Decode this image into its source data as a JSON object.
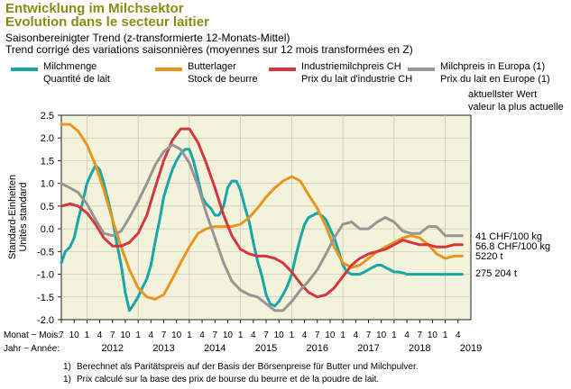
{
  "title": {
    "line1": "Entwicklung im Milchsektor",
    "line2": "Evolution dans le secteur laitier"
  },
  "subtitle": {
    "line1": "Saisonbereinigter Trend (z-transformierte 12-Monats-Mittel)",
    "line2": "Trend corrigé des variations saisonnières (moyennes sur 12 mois transformées en Z)"
  },
  "legend": [
    {
      "de": "Milchmenge",
      "fr": "Quantité de lait",
      "color": "#1aa6a6"
    },
    {
      "de": "Butterlager",
      "fr": "Stock de beurre",
      "color": "#e8961e"
    },
    {
      "de": "Industriemilchpreis CH",
      "fr": "Prix du lait d'industrie CH",
      "color": "#d6363c"
    },
    {
      "de": "Milchpreis in Europa (1)",
      "fr": "Prix du lait en Europe (1)",
      "color": "#9a9595"
    }
  ],
  "latest_header": {
    "de": "aktuellster Wert",
    "fr": "valeur la plus actuelle"
  },
  "latest_values": [
    "41 CHF/100 kg",
    "56.8 CHF/100 kg",
    "5220 t",
    "275 204 t"
  ],
  "axis": {
    "ylabel_de": "Standard-Einheiten",
    "ylabel_fr": "Unités standard",
    "month_label": "Monat ~ Mois:",
    "year_label": "Jahr ~ Année:"
  },
  "footnotes": [
    "Berechnet als Paritätspreis auf der Basis der Börsenpreise für Butter und Milchpulver.",
    "Prix calculé sur la base des prix de bourse du beurre et de la poudre de lait."
  ],
  "footnote_marker": "1)",
  "colors": {
    "plot_bg": "#f3f3dc",
    "title": "#8b8b12"
  },
  "chart_data": {
    "type": "line",
    "x_unit": "month (fractional year)",
    "xlim": [
      2011.5,
      2019.5
    ],
    "ylim": [
      -2.0,
      2.5
    ],
    "yticks": [
      -2.0,
      -1.5,
      -1.0,
      -0.5,
      0.0,
      0.5,
      1.0,
      1.5,
      2.0,
      2.5
    ],
    "ytick_labels": [
      "-2.0",
      "-1.5",
      "-1.0",
      "-0.5",
      "0.0",
      "0.5",
      "1.0",
      "1.5",
      "2.0",
      "2.5"
    ],
    "x_month_labels": [
      "7",
      "10",
      "1",
      "4",
      "7",
      "10",
      "1",
      "4",
      "7",
      "10",
      "1",
      "4",
      "7",
      "10",
      "1",
      "4",
      "7",
      "10",
      "1",
      "4",
      "7",
      "10",
      "1",
      "4",
      "7",
      "10",
      "1",
      "4",
      "7",
      "10",
      "1",
      "4"
    ],
    "x_year_labels": [
      "2012",
      "2013",
      "2014",
      "2015",
      "2016",
      "2017",
      "2018",
      "2019"
    ],
    "grid": true,
    "series": [
      {
        "name": "Milchmenge",
        "color": "#1aa6a6",
        "x": [
          2011.5,
          2011.58,
          2011.67,
          2011.75,
          2011.83,
          2011.92,
          2012.0,
          2012.08,
          2012.17,
          2012.25,
          2012.33,
          2012.42,
          2012.5,
          2012.58,
          2012.67,
          2012.75,
          2012.83,
          2012.92,
          2013.0,
          2013.08,
          2013.17,
          2013.25,
          2013.33,
          2013.42,
          2013.5,
          2013.58,
          2013.67,
          2013.75,
          2013.83,
          2013.92,
          2014.0,
          2014.08,
          2014.17,
          2014.25,
          2014.33,
          2014.42,
          2014.5,
          2014.58,
          2014.67,
          2014.75,
          2014.83,
          2014.92,
          2015.0,
          2015.08,
          2015.17,
          2015.25,
          2015.33,
          2015.42,
          2015.5,
          2015.58,
          2015.67,
          2015.75,
          2015.83,
          2015.92,
          2016.0,
          2016.08,
          2016.17,
          2016.25,
          2016.33,
          2016.42,
          2016.5,
          2016.58,
          2016.67,
          2016.75,
          2016.83,
          2016.92,
          2017.0,
          2017.08,
          2017.17,
          2017.25,
          2017.33,
          2017.42,
          2017.5,
          2017.58,
          2017.67,
          2017.75,
          2017.83,
          2017.92,
          2018.0,
          2018.08,
          2018.17,
          2018.25,
          2018.33,
          2018.42,
          2018.5,
          2018.58,
          2018.67,
          2018.75,
          2018.83,
          2018.92,
          2019.0,
          2019.08,
          2019.17,
          2019.25,
          2019.33
        ],
        "y": [
          -0.75,
          -0.5,
          -0.4,
          -0.2,
          0.2,
          0.6,
          1.0,
          1.2,
          1.4,
          1.3,
          1.0,
          0.6,
          0.2,
          -0.3,
          -0.8,
          -1.4,
          -1.8,
          -1.65,
          -1.5,
          -1.3,
          -1.1,
          -0.8,
          -0.3,
          0.2,
          0.7,
          1.0,
          1.3,
          1.5,
          1.65,
          1.75,
          1.75,
          1.5,
          1.1,
          0.7,
          0.55,
          0.45,
          0.3,
          0.3,
          0.5,
          0.9,
          1.05,
          1.05,
          0.85,
          0.5,
          0.15,
          -0.3,
          -0.7,
          -1.05,
          -1.45,
          -1.65,
          -1.7,
          -1.6,
          -1.45,
          -1.25,
          -1.0,
          -0.6,
          -0.2,
          0.1,
          0.25,
          0.3,
          0.35,
          0.3,
          0.2,
          0.0,
          -0.2,
          -0.5,
          -0.8,
          -0.95,
          -1.0,
          -1.0,
          -1.0,
          -0.95,
          -0.9,
          -0.85,
          -0.8,
          -0.8,
          -0.85,
          -0.9,
          -0.95,
          -0.95,
          -0.97,
          -1.0,
          -1.0,
          -1.0,
          -1.0,
          -1.0,
          -1.0,
          -1.0,
          -1.0,
          -1.0,
          -1.0,
          -1.0,
          -1.0,
          -1.0,
          -1.0
        ]
      },
      {
        "name": "Butterlager",
        "color": "#e8961e",
        "x": [
          2011.5,
          2011.67,
          2011.83,
          2012.0,
          2012.17,
          2012.33,
          2012.5,
          2012.67,
          2012.83,
          2013.0,
          2013.17,
          2013.33,
          2013.5,
          2013.67,
          2013.83,
          2014.0,
          2014.17,
          2014.33,
          2014.5,
          2014.67,
          2014.83,
          2015.0,
          2015.17,
          2015.33,
          2015.5,
          2015.67,
          2015.83,
          2016.0,
          2016.17,
          2016.33,
          2016.5,
          2016.67,
          2016.83,
          2017.0,
          2017.17,
          2017.33,
          2017.5,
          2017.67,
          2017.83,
          2018.0,
          2018.17,
          2018.33,
          2018.5,
          2018.67,
          2018.83,
          2019.0,
          2019.17,
          2019.33
        ],
        "y": [
          2.3,
          2.3,
          2.15,
          1.85,
          1.4,
          0.85,
          0.2,
          -0.4,
          -0.9,
          -1.3,
          -1.5,
          -1.55,
          -1.45,
          -1.1,
          -0.75,
          -0.4,
          -0.1,
          0.0,
          0.05,
          0.05,
          0.05,
          0.1,
          0.25,
          0.45,
          0.7,
          0.9,
          1.05,
          1.15,
          1.05,
          0.75,
          0.45,
          0.05,
          -0.4,
          -0.75,
          -0.85,
          -0.8,
          -0.65,
          -0.5,
          -0.4,
          -0.3,
          -0.2,
          -0.15,
          -0.2,
          -0.35,
          -0.55,
          -0.65,
          -0.6,
          -0.6
        ]
      },
      {
        "name": "Industriemilchpreis CH",
        "color": "#d6363c",
        "x": [
          2011.5,
          2011.67,
          2011.83,
          2012.0,
          2012.17,
          2012.33,
          2012.5,
          2012.67,
          2012.83,
          2013.0,
          2013.17,
          2013.33,
          2013.5,
          2013.67,
          2013.83,
          2014.0,
          2014.17,
          2014.33,
          2014.5,
          2014.67,
          2014.83,
          2015.0,
          2015.17,
          2015.33,
          2015.5,
          2015.67,
          2015.83,
          2016.0,
          2016.17,
          2016.33,
          2016.5,
          2016.67,
          2016.83,
          2017.0,
          2017.17,
          2017.33,
          2017.5,
          2017.67,
          2017.83,
          2018.0,
          2018.17,
          2018.33,
          2018.5,
          2018.67,
          2018.83,
          2019.0,
          2019.17,
          2019.33
        ],
        "y": [
          0.5,
          0.55,
          0.5,
          0.35,
          0.1,
          -0.2,
          -0.38,
          -0.38,
          -0.3,
          -0.1,
          0.3,
          0.9,
          1.5,
          1.95,
          2.2,
          2.2,
          1.9,
          1.45,
          0.9,
          0.3,
          -0.15,
          -0.45,
          -0.55,
          -0.6,
          -0.6,
          -0.65,
          -0.75,
          -0.95,
          -1.2,
          -1.4,
          -1.5,
          -1.45,
          -1.3,
          -1.05,
          -0.8,
          -0.65,
          -0.55,
          -0.5,
          -0.45,
          -0.35,
          -0.25,
          -0.3,
          -0.35,
          -0.35,
          -0.4,
          -0.4,
          -0.35,
          -0.35
        ]
      },
      {
        "name": "Milchpreis in Europa",
        "color": "#9a9595",
        "x": [
          2011.5,
          2011.67,
          2011.83,
          2012.0,
          2012.17,
          2012.33,
          2012.5,
          2012.67,
          2012.83,
          2013.0,
          2013.17,
          2013.33,
          2013.5,
          2013.67,
          2013.83,
          2014.0,
          2014.17,
          2014.33,
          2014.5,
          2014.67,
          2014.83,
          2015.0,
          2015.17,
          2015.33,
          2015.5,
          2015.67,
          2015.83,
          2016.0,
          2016.17,
          2016.33,
          2016.5,
          2016.67,
          2016.83,
          2017.0,
          2017.17,
          2017.33,
          2017.5,
          2017.67,
          2017.83,
          2018.0,
          2018.17,
          2018.33,
          2018.5,
          2018.67,
          2018.83,
          2019.0,
          2019.17,
          2019.33
        ],
        "y": [
          1.0,
          0.9,
          0.8,
          0.55,
          0.2,
          -0.1,
          -0.15,
          -0.05,
          0.25,
          0.6,
          1.0,
          1.4,
          1.7,
          1.85,
          1.75,
          1.45,
          0.95,
          0.35,
          -0.2,
          -0.75,
          -1.15,
          -1.35,
          -1.45,
          -1.5,
          -1.65,
          -1.8,
          -1.8,
          -1.6,
          -1.35,
          -1.15,
          -0.9,
          -0.55,
          -0.2,
          0.1,
          0.15,
          0.0,
          0.0,
          0.15,
          0.25,
          0.15,
          -0.05,
          -0.1,
          -0.1,
          0.05,
          0.05,
          -0.15,
          -0.15,
          -0.15
        ]
      }
    ]
  }
}
